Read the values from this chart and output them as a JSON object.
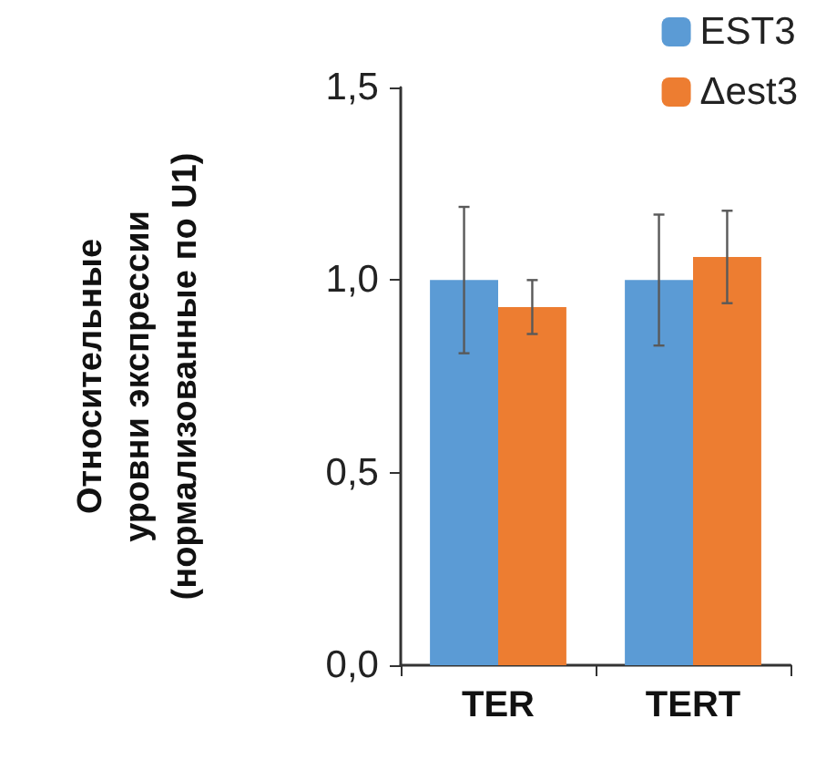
{
  "chart_data": {
    "type": "bar",
    "ylabel": "Относительные\nуровни экспрессии\n(нормализованные по U1)",
    "categories": [
      "TER",
      "TERT"
    ],
    "series": [
      {
        "name": "EST3",
        "color": "#5b9bd5",
        "values": [
          1.0,
          1.0
        ],
        "errors": [
          0.19,
          0.17
        ]
      },
      {
        "name": "Δest3",
        "color": "#ed7d31",
        "values": [
          0.93,
          1.06
        ],
        "errors": [
          0.07,
          0.12
        ]
      }
    ],
    "ylim": [
      0,
      1.5
    ],
    "yticks": [
      {
        "value": 0,
        "label": "0,0"
      },
      {
        "value": 0.5,
        "label": "0,5"
      },
      {
        "value": 1,
        "label": "1,0"
      },
      {
        "value": 1.5,
        "label": "1,5"
      }
    ],
    "grid": false,
    "legend": "top right"
  }
}
